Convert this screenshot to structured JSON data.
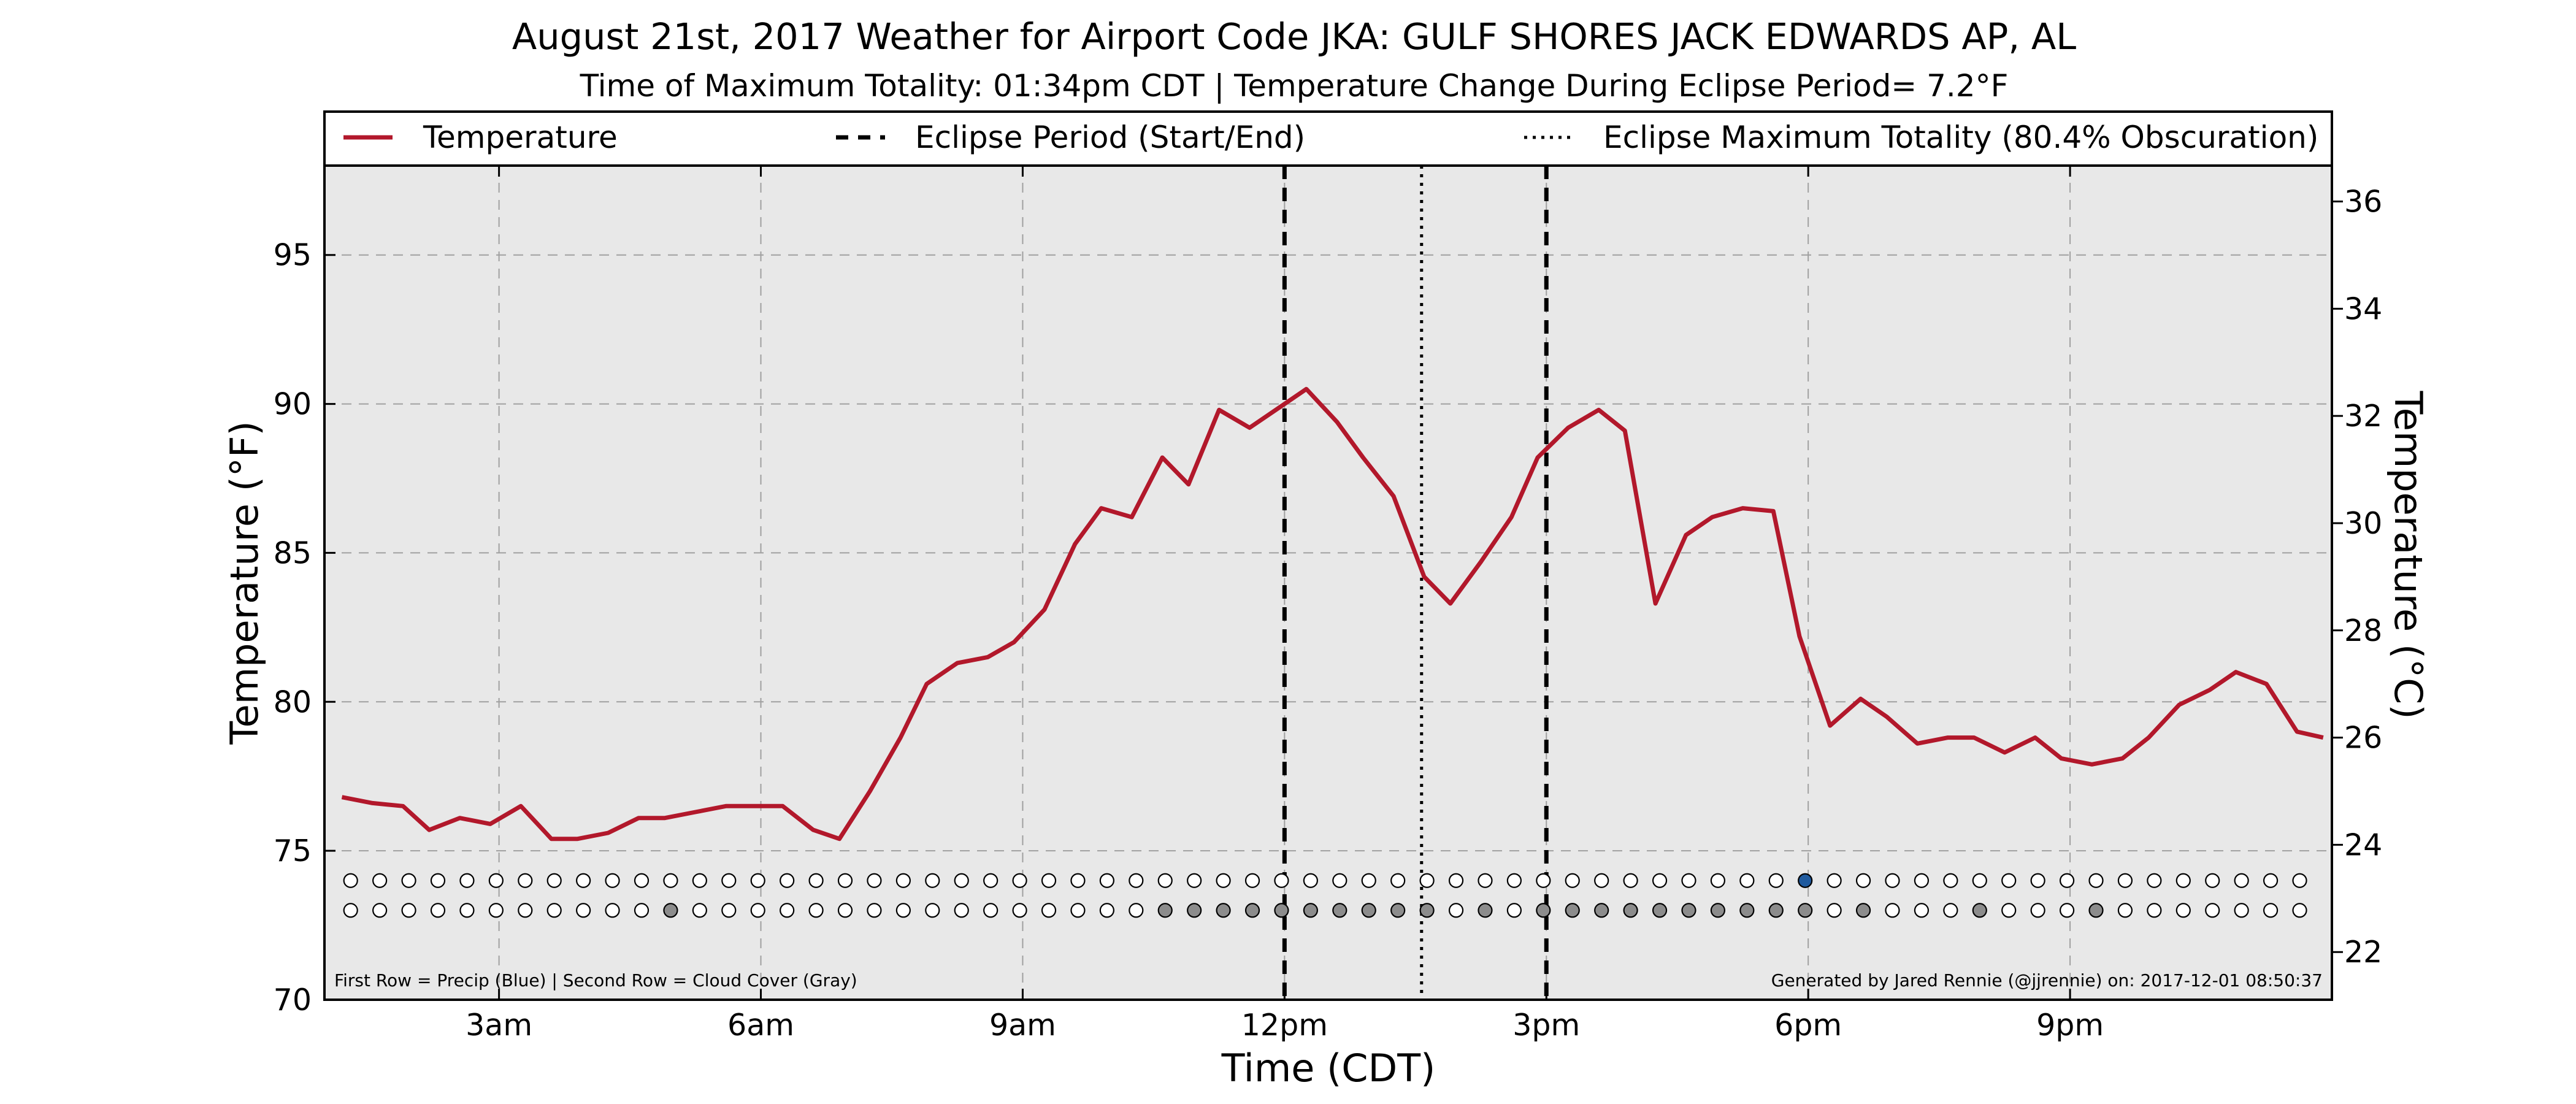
{
  "chart_data": {
    "type": "line",
    "title": "August 21st, 2017 Weather for Airport Code JKA: GULF SHORES JACK EDWARDS AP, AL",
    "subtitle": "Time of Maximum Totality: 01:34pm CDT | Temperature Change During Eclipse Period= 7.2°F",
    "xlabel": "Time (CDT)",
    "ylabel": "Temperature (°F)",
    "ylabel_right": "Temperature (°C)",
    "xlim": [
      1.0,
      24.0
    ],
    "ylim": [
      70,
      98
    ],
    "ylim_right": [
      21.11,
      36.67
    ],
    "x_ticks": [
      {
        "x": 3,
        "label": "3am"
      },
      {
        "x": 6,
        "label": "6am"
      },
      {
        "x": 9,
        "label": "9am"
      },
      {
        "x": 12,
        "label": "12pm"
      },
      {
        "x": 15,
        "label": "3pm"
      },
      {
        "x": 18,
        "label": "6pm"
      },
      {
        "x": 21,
        "label": "9pm"
      }
    ],
    "y_ticks": [
      70,
      75,
      80,
      85,
      90,
      95
    ],
    "y_ticks_right": [
      22,
      24,
      26,
      28,
      30,
      32,
      34,
      36
    ],
    "grid": true,
    "background": "#e8e8e8",
    "legend": {
      "placement": "top",
      "entries": [
        {
          "label": "Temperature",
          "style": "solid",
          "color": "#b2182b"
        },
        {
          "label": "Eclipse Period (Start/End)",
          "style": "dashed",
          "color": "#000000"
        },
        {
          "label": "Eclipse Maximum Totality (80.4% Obscuration)",
          "style": "dotted",
          "color": "#000000"
        }
      ]
    },
    "eclipse": {
      "start": 12.0,
      "end": 15.0,
      "max": 13.57
    },
    "series": [
      {
        "name": "Temperature",
        "color": "#b2182b",
        "x": [
          1.2,
          1.55,
          1.9,
          2.2,
          2.55,
          2.9,
          3.25,
          3.6,
          3.9,
          4.25,
          4.6,
          4.9,
          5.25,
          5.6,
          5.9,
          6.25,
          6.6,
          6.9,
          7.25,
          7.6,
          7.9,
          8.25,
          8.6,
          8.9,
          9.25,
          9.6,
          9.9,
          10.25,
          10.6,
          10.9,
          11.25,
          11.6,
          11.9,
          12.25,
          12.6,
          12.9,
          13.25,
          13.6,
          13.9,
          14.25,
          14.6,
          14.9,
          15.25,
          15.6,
          15.9,
          16.25,
          16.6,
          16.9,
          17.25,
          17.6,
          17.9,
          18.25,
          18.6,
          18.9,
          19.25,
          19.6,
          19.9,
          20.25,
          20.6,
          20.9,
          21.25,
          21.6,
          21.9,
          22.25,
          22.6,
          22.9,
          23.25,
          23.6,
          23.9
        ],
        "values": [
          76.8,
          76.6,
          76.5,
          75.7,
          76.1,
          75.9,
          76.5,
          75.4,
          75.4,
          75.6,
          76.1,
          76.1,
          76.3,
          76.5,
          76.5,
          76.5,
          75.7,
          75.4,
          77.0,
          78.8,
          80.6,
          81.3,
          81.5,
          82.0,
          83.1,
          85.3,
          86.5,
          86.2,
          88.2,
          87.3,
          89.8,
          89.2,
          89.8,
          90.5,
          89.4,
          88.2,
          86.9,
          84.2,
          83.3,
          84.7,
          86.2,
          88.2,
          89.2,
          89.8,
          89.1,
          83.3,
          85.6,
          86.2,
          86.5,
          86.4,
          82.2,
          79.2,
          80.1,
          79.5,
          78.6,
          78.8,
          78.8,
          78.3,
          78.8,
          78.1,
          77.9,
          78.1,
          78.8,
          79.9,
          80.4,
          81.0,
          80.6,
          79.0,
          78.8
        ]
      }
    ],
    "markers": {
      "x_start": 1.3,
      "x_step": 0.3333,
      "count": 68,
      "precip_row_value": 74.0,
      "cloud_row_value": 73.0,
      "precip_filled_index": 50,
      "precip_color": "#1f5a9e",
      "cloud_filled_indices": [
        11,
        28,
        29,
        30,
        31,
        32,
        33,
        34,
        35,
        36,
        37,
        39,
        41,
        42,
        43,
        44,
        45,
        46,
        47,
        48,
        49,
        50,
        52,
        56,
        60
      ],
      "cloud_color": "#8c8c8c",
      "empty_color": "#ffffff"
    },
    "note_left": "First Row = Precip (Blue) | Second Row = Cloud Cover (Gray)",
    "note_right": "Generated by Jared Rennie (@jjrennie) on: 2017-12-01 08:50:37"
  }
}
